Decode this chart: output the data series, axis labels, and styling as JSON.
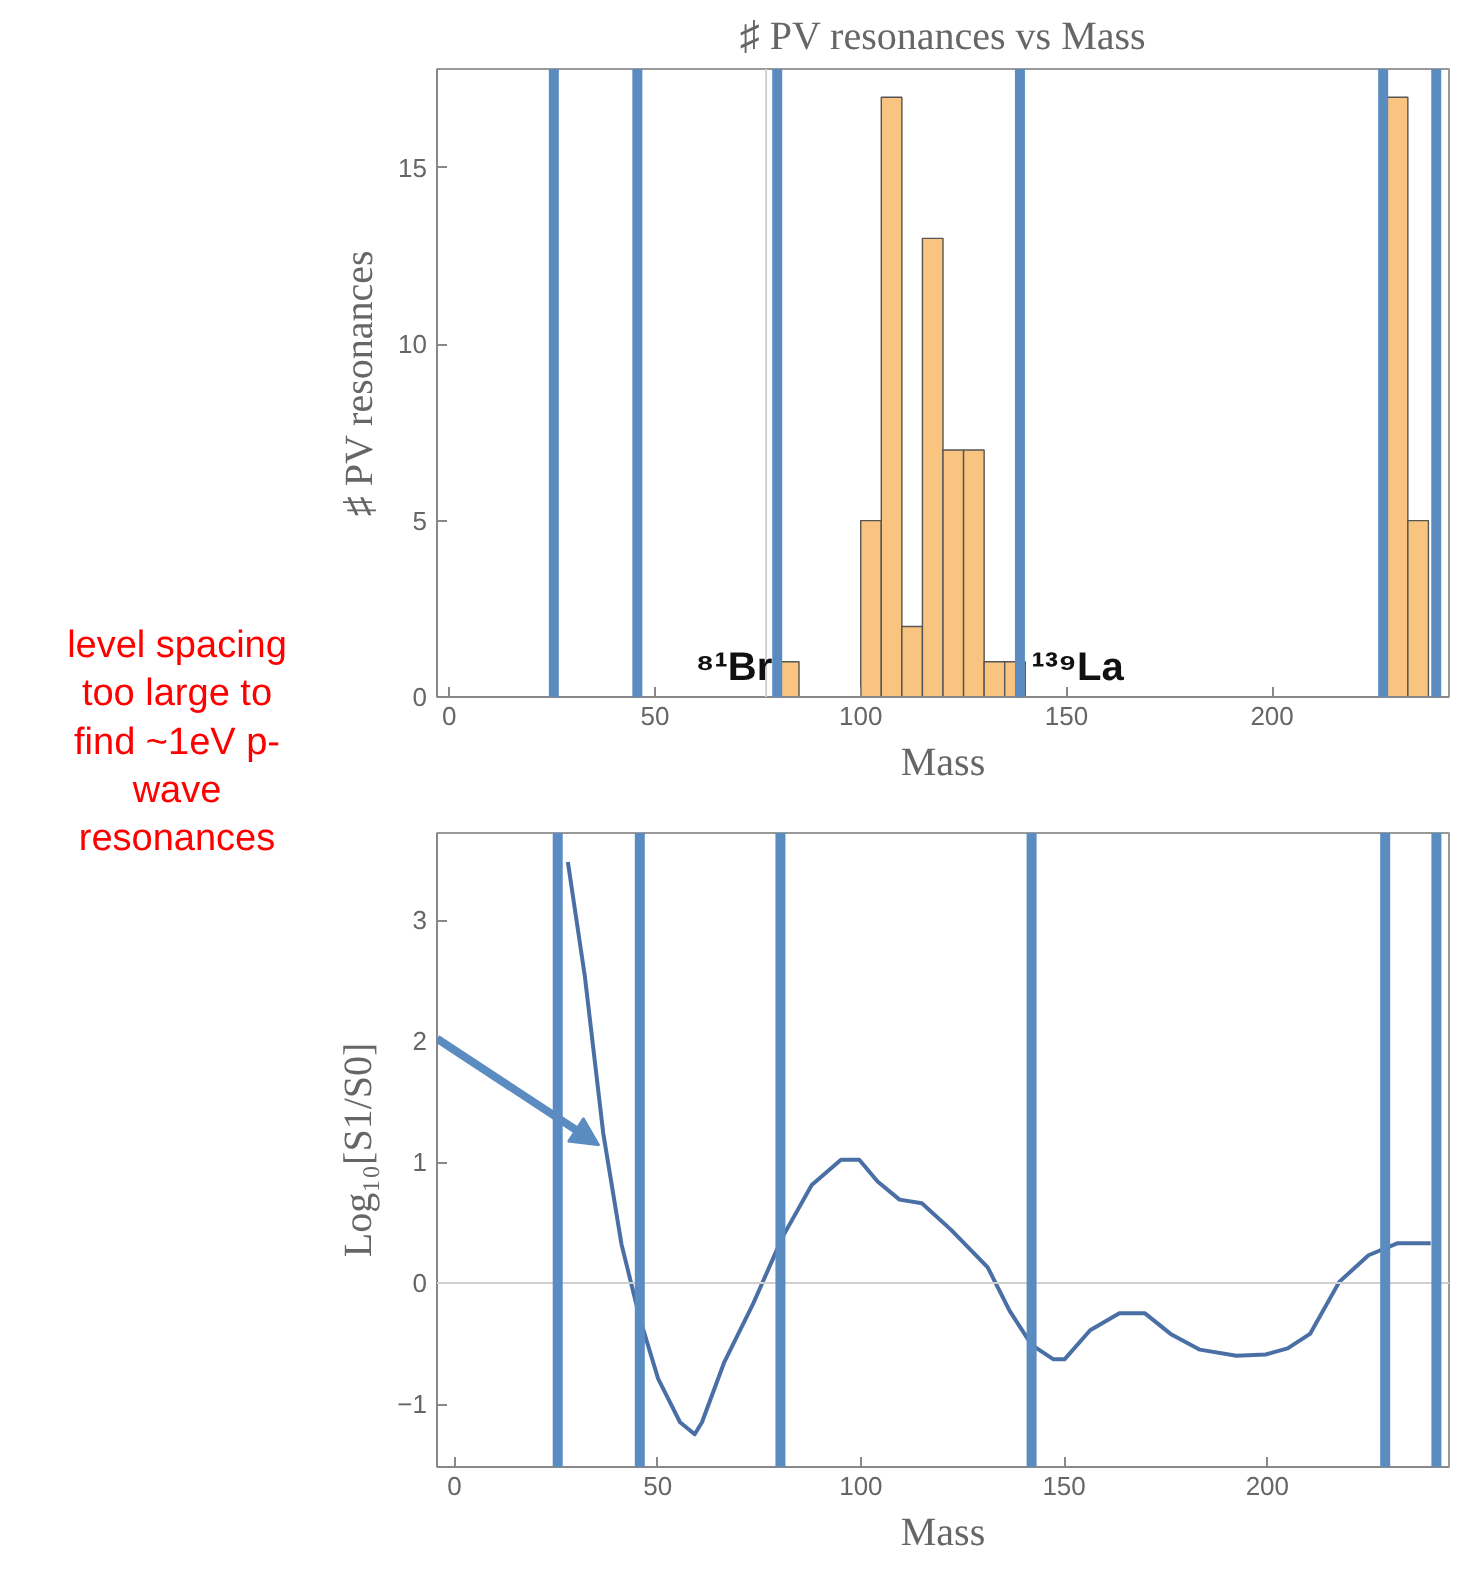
{
  "chart_data": [
    {
      "type": "histogram",
      "title": "♯ PV resonances vs Mass",
      "xlabel": "Mass",
      "ylabel": "♯ PV resonances",
      "bins": [
        80,
        85,
        100,
        105,
        110,
        115,
        120,
        125,
        130,
        135,
        140,
        228,
        233,
        238
      ],
      "values": [
        1,
        0,
        5,
        17,
        2,
        13,
        7,
        7,
        1,
        1,
        0,
        17,
        5
      ],
      "color": "#f8c47f",
      "xlim": [
        -3,
        243
      ],
      "ylim": [
        0,
        17.8
      ],
      "xticks": [
        0,
        50,
        100,
        150,
        200
      ],
      "yticks": [
        0,
        5,
        10,
        15
      ],
      "grid": false,
      "annotations": [
        "⁸¹Br",
        "¹³⁹La"
      ],
      "ref_lines": [
        {
          "axis": "x",
          "value": 77,
          "color": "#d0d0d0"
        },
        {
          "axis": "x",
          "value": 25.4,
          "color": "#5b8cc1"
        },
        {
          "axis": "x",
          "value": 45.7,
          "color": "#5b8cc1"
        },
        {
          "axis": "x",
          "value": 79.7,
          "color": "#5b8cc1"
        },
        {
          "axis": "x",
          "value": 138.7,
          "color": "#5b8cc1"
        },
        {
          "axis": "x",
          "value": 227,
          "color": "#5b8cc1"
        },
        {
          "axis": "x",
          "value": 239.9,
          "color": "#5b8cc1"
        }
      ]
    },
    {
      "type": "line",
      "xlabel": "Mass",
      "ylabel": "Log₁₀[S1/S0]",
      "color": "#4a6fa5",
      "x": [
        27.9,
        32.1,
        36.6,
        41.1,
        45.6,
        50.1,
        55.5,
        59.1,
        60.9,
        66.3,
        73.5,
        80.7,
        87.9,
        95.1,
        99.6,
        104.1,
        109.5,
        115,
        122.2,
        131.2,
        136.6,
        142,
        147.4,
        150.1,
        156.4,
        163.6,
        169.9,
        176.2,
        183.4,
        192.4,
        199.6,
        205,
        210.5,
        217.7,
        224.9,
        232.1,
        240.2
      ],
      "values": [
        3.48,
        2.53,
        1.24,
        0.32,
        -0.29,
        -0.79,
        -1.15,
        -1.25,
        -1.15,
        -0.66,
        -0.17,
        0.38,
        0.81,
        1.02,
        1.02,
        0.84,
        0.69,
        0.66,
        0.44,
        0.13,
        -0.23,
        -0.51,
        -0.63,
        -0.63,
        -0.39,
        -0.25,
        -0.25,
        -0.42,
        -0.55,
        -0.6,
        -0.59,
        -0.54,
        -0.42,
        0.01,
        0.23,
        0.33,
        0.33
      ],
      "xlim": [
        -4.3,
        244.7
      ],
      "ylim": [
        -1.52,
        3.72
      ],
      "xticks": [
        0,
        50,
        100,
        150,
        200
      ],
      "yticks": [
        -1,
        0,
        1,
        2,
        3
      ],
      "grid": false,
      "annotations": [
        "level spacing\ntoo large to\nfind ~1eV p-\nwave\nresonances"
      ],
      "ref_lines": [
        {
          "axis": "y",
          "value": 0,
          "color": "#d0d0d0"
        },
        {
          "axis": "x",
          "value": 25.4,
          "color": "#5b8cc1"
        },
        {
          "axis": "x",
          "value": 45.6,
          "color": "#5b8cc1"
        },
        {
          "axis": "x",
          "value": 80.2,
          "color": "#5b8cc1"
        },
        {
          "axis": "x",
          "value": 142,
          "color": "#5b8cc1"
        },
        {
          "axis": "x",
          "value": 229,
          "color": "#5b8cc1"
        },
        {
          "axis": "x",
          "value": 241.6,
          "color": "#5b8cc1"
        }
      ]
    }
  ]
}
